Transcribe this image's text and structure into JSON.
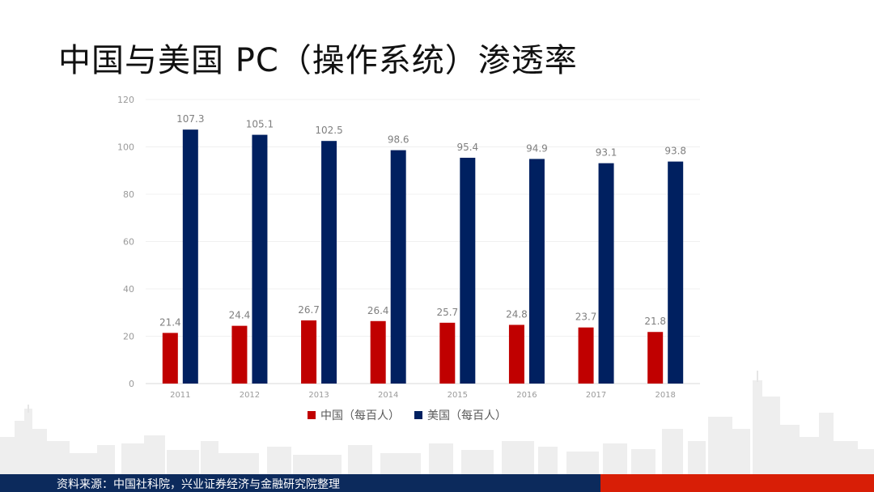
{
  "page": {
    "title": "中国与美国 PC（操作系统）渗透率",
    "source": "资料来源：中国社科院，兴业证券经济与金融研究院整理"
  },
  "colors": {
    "china": "#c00000",
    "usa": "#002060",
    "footer_blue": "#0c2a5c",
    "footer_red": "#d81e06"
  },
  "chart_data": {
    "type": "bar",
    "title": "中国与美国 PC（操作系统）渗透率",
    "categories": [
      "2011",
      "2012",
      "2013",
      "2014",
      "2015",
      "2016",
      "2017",
      "2018"
    ],
    "series": [
      {
        "name": "中国（每百人）",
        "values": [
          21.4,
          24.4,
          26.7,
          26.4,
          25.7,
          24.8,
          23.7,
          21.8
        ]
      },
      {
        "name": "美国（每百人）",
        "values": [
          107.3,
          105.1,
          102.5,
          98.6,
          95.4,
          94.9,
          93.1,
          93.8
        ]
      }
    ],
    "ylim": [
      0,
      120
    ],
    "yticks": [
      0,
      20,
      40,
      60,
      80,
      100,
      120
    ],
    "grid": true,
    "legend": "bottom"
  }
}
